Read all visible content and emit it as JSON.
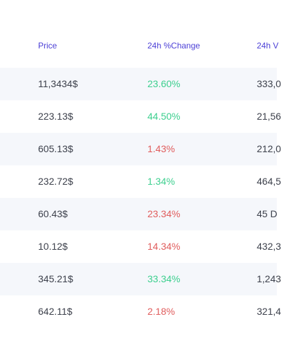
{
  "colors": {
    "header_text": "#4b3fd6",
    "positive": "#3ccf8e",
    "negative": "#e05c5c",
    "row_shade": "#f5f7fb",
    "cell_text": "#3b3f4a"
  },
  "table": {
    "headers": {
      "price": "Price",
      "change": "24h %Change",
      "volume": "24h V"
    },
    "rows": [
      {
        "price": "11,3434$",
        "change": "23.60%",
        "change_dir": "up",
        "volume": "333,0"
      },
      {
        "price": "223.13$",
        "change": "44.50%",
        "change_dir": "up",
        "volume": "21,56"
      },
      {
        "price": "605.13$",
        "change": "1.43%",
        "change_dir": "down",
        "volume": "212,0"
      },
      {
        "price": "232.72$",
        "change": "1.34%",
        "change_dir": "up",
        "volume": "464,5"
      },
      {
        "price": "60.43$",
        "change": "23.34%",
        "change_dir": "down",
        "volume": "45 D"
      },
      {
        "price": "10.12$",
        "change": "14.34%",
        "change_dir": "down",
        "volume": "432,3"
      },
      {
        "price": "345.21$",
        "change": "33.34%",
        "change_dir": "up",
        "volume": "1,243"
      },
      {
        "price": "642.11$",
        "change": "2.18%",
        "change_dir": "down",
        "volume": "321,4"
      }
    ]
  }
}
